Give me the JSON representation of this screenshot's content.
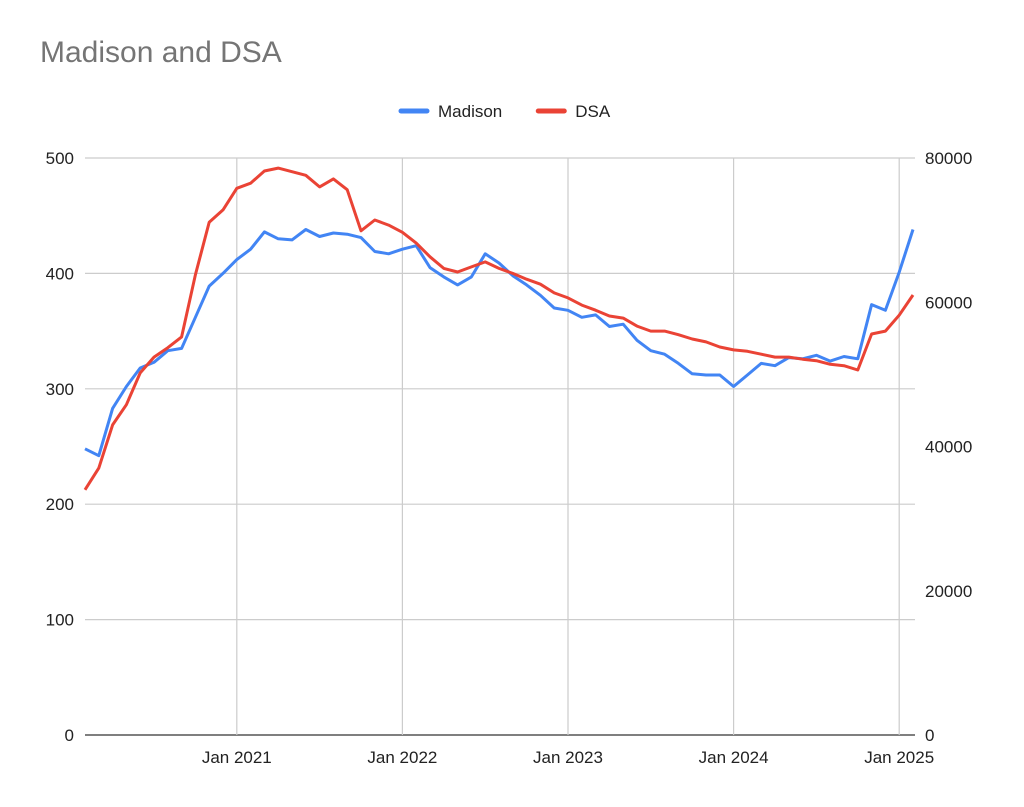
{
  "chart_data": {
    "type": "line",
    "title": "Madison and DSA",
    "legend_position": "top",
    "grid": true,
    "x": [
      "2020-02",
      "2020-03",
      "2020-04",
      "2020-05",
      "2020-06",
      "2020-07",
      "2020-08",
      "2020-09",
      "2020-10",
      "2020-11",
      "2020-12",
      "2021-01",
      "2021-02",
      "2021-03",
      "2021-04",
      "2021-05",
      "2021-06",
      "2021-07",
      "2021-08",
      "2021-09",
      "2021-10",
      "2021-11",
      "2021-12",
      "2022-01",
      "2022-02",
      "2022-03",
      "2022-04",
      "2022-05",
      "2022-06",
      "2022-07",
      "2022-08",
      "2022-09",
      "2022-10",
      "2022-11",
      "2022-12",
      "2023-01",
      "2023-02",
      "2023-03",
      "2023-04",
      "2023-05",
      "2023-06",
      "2023-07",
      "2023-08",
      "2023-09",
      "2023-10",
      "2023-11",
      "2023-12",
      "2024-01",
      "2024-02",
      "2024-03",
      "2024-04",
      "2024-05",
      "2024-06",
      "2024-07",
      "2024-08",
      "2024-09",
      "2024-10",
      "2024-11",
      "2024-12",
      "2025-01",
      "2025-02"
    ],
    "x_tick_labels": [
      "Jan 2021",
      "Jan 2022",
      "Jan 2023",
      "Jan 2024",
      "Jan 2025"
    ],
    "x_tick_values": [
      "2021-01",
      "2022-01",
      "2023-01",
      "2024-01",
      "2025-01"
    ],
    "y_left": {
      "range": [
        0,
        500
      ],
      "ticks": [
        "0",
        "100",
        "200",
        "300",
        "400",
        "500"
      ]
    },
    "y_right": {
      "range": [
        0,
        80000
      ],
      "ticks": [
        "0",
        "20000",
        "40000",
        "60000",
        "80000"
      ]
    },
    "series": [
      {
        "name": "Madison",
        "axis": "left",
        "color": "#4285F4",
        "values": [
          248,
          242,
          283,
          302,
          318,
          323,
          333,
          335,
          362,
          389,
          400,
          412,
          421,
          436,
          430,
          429,
          438,
          432,
          435,
          434,
          431,
          419,
          417,
          421,
          424,
          405,
          397,
          390,
          397,
          417,
          409,
          398,
          390,
          381,
          370,
          368,
          362,
          364,
          354,
          356,
          342,
          333,
          330,
          322,
          313,
          312,
          312,
          302,
          312,
          322,
          320,
          327,
          326,
          329,
          324,
          328,
          326,
          373,
          368,
          401,
          438
        ]
      },
      {
        "name": "DSA",
        "axis": "right",
        "color": "#EA4335",
        "values": [
          34000,
          37000,
          43000,
          45800,
          50200,
          52400,
          53700,
          55200,
          63800,
          71100,
          72800,
          75800,
          76500,
          78200,
          78600,
          78100,
          77600,
          76000,
          77100,
          75600,
          69900,
          71400,
          70700,
          69700,
          68200,
          66300,
          64700,
          64200,
          64900,
          65600,
          64700,
          64000,
          63200,
          62500,
          61300,
          60600,
          59600,
          58900,
          58100,
          57800,
          56700,
          56000,
          56000,
          55500,
          54900,
          54500,
          53800,
          53400,
          53200,
          52800,
          52400,
          52400,
          52100,
          51900,
          51400,
          51200,
          50600,
          55600,
          56000,
          58200,
          61000
        ]
      }
    ]
  }
}
